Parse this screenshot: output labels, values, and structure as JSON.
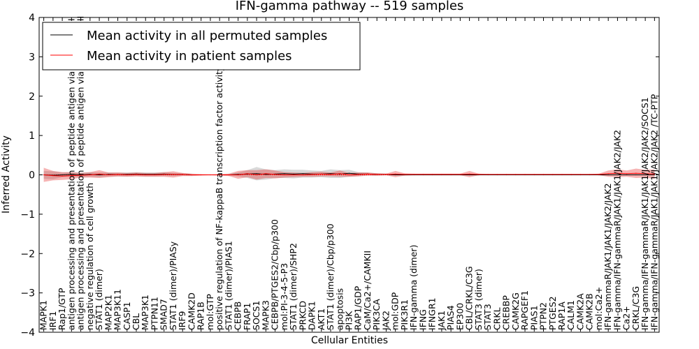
{
  "chart_data": {
    "type": "line",
    "title": "IFN-gamma pathway -- 519 samples",
    "xlabel": "Cellular Entities",
    "ylabel": "Inferred Activity",
    "ylim": [
      -4,
      4
    ],
    "yticks": [
      "4",
      "3",
      "2",
      "1",
      "0",
      "−1",
      "−2",
      "−3",
      "−4"
    ],
    "legend": {
      "placement": "top-left",
      "entries": [
        {
          "label": "Mean activity in all permuted samples",
          "color": "#000000"
        },
        {
          "label": "Mean activity in patient samples",
          "color": "#ff0000"
        }
      ]
    },
    "categories": [
      "MAPK1",
      "IRF1",
      "Rap1/GTP",
      "antigen processing and presentation of peptide antigen via MHC class I",
      "antigen processing and presentation of peptide antigen via MHC class II",
      "negative regulation of cell growth",
      "STAT1 (dimer)",
      "MAP2K1",
      "MAP3K11",
      "CASP1",
      "CBL",
      "MAP3K1",
      "PTPN11",
      "SMAD7",
      "STAT1 (dimer)/PIASy",
      "IRF9",
      "CAMK2D",
      "RAP1B",
      "mol:GTP",
      "positive regulation of NF-kappaB transcription factor activity",
      "STAT1 (dimer)/PIAS1",
      "CEBPB",
      "FRAP1",
      "SOCS1",
      "MAPK3",
      "CEBPB/PTGES2/Cbp/p300",
      "mol:PI-3-4-5-P3",
      "STAT1 (dimer)/SHP2",
      "PRKCD",
      "DAPK1",
      "AKT1",
      "STAT1 (dimer)/Cbp/p300",
      "apoptosis",
      "PI3K",
      "RAP1/GDP",
      "CaM/Ca2+/CAMKII",
      "PIK3CA",
      "JAK2",
      "mol:GDP",
      "PIK3R1",
      "IFN-gamma (dimer)",
      "IFNG",
      "IFNGR1",
      "JAK1",
      "PIAS4",
      "EP300",
      "CBL/CRKL/C3G",
      "STAT3 (dimer)",
      "STAT3",
      "CRKL",
      "CREBBP",
      "CAMK2G",
      "RAPGEF1",
      "PIAS1",
      "PTPN2",
      "PTGES2",
      "RAP1A",
      "CALM1",
      "CAMK2A",
      "CAMK2B",
      "mol:Ca2+",
      "IFN-gammaR/JAK1/JAK1/JAK2/JAK2",
      "IFN-gamma/IFN-gammaR/JAK1/JAK1/JAK2/JAK2",
      "Ca2+",
      "CRKL/C3G",
      "IFN-gamma/IFN-gammaR/JAK1/JAK1/JAK2/JAK2/SOCS1",
      "IFN-gamma/IFN-gammaR/JAK1/JAK1/JAK2/JAK2 /TC-PTP"
    ],
    "series": [
      {
        "name": "Mean activity in all permuted samples",
        "color": "#000000",
        "values": [
          0.0,
          -0.01,
          0.0,
          0.01,
          0.0,
          0.01,
          0.0,
          0.01,
          0.01,
          0.01,
          0.02,
          0.01,
          0.01,
          0.02,
          0.01,
          0.01,
          0.0,
          0.0,
          0.0,
          0.0,
          0.0,
          0.01,
          0.02,
          0.03,
          0.01,
          0.02,
          0.03,
          0.02,
          0.03,
          0.02,
          0.02,
          0.03,
          0.02,
          0.04,
          0.02,
          0.02,
          0.01,
          0.01,
          0.0,
          0.0,
          0.0,
          0.0,
          0.0,
          0.0,
          0.0,
          0.0,
          0.0,
          0.0,
          0.0,
          0.0,
          0.0,
          0.0,
          0.0,
          0.0,
          0.0,
          0.0,
          0.0,
          0.0,
          0.0,
          0.0,
          0.0,
          0.0,
          0.0,
          0.0,
          0.0,
          0.0,
          0.0
        ],
        "band": [
          0.1,
          0.1,
          0.06,
          0.06,
          0.06,
          0.06,
          0.06,
          0.05,
          0.05,
          0.05,
          0.05,
          0.05,
          0.05,
          0.05,
          0.04,
          0.03,
          0.02,
          0.01,
          0.01,
          0.01,
          0.02,
          0.05,
          0.1,
          0.17,
          0.13,
          0.1,
          0.11,
          0.11,
          0.1,
          0.09,
          0.08,
          0.11,
          0.1,
          0.09,
          0.05,
          0.04,
          0.03,
          0.02,
          0.01,
          0.01,
          0.01,
          0.01,
          0.01,
          0.01,
          0.01,
          0.01,
          0.01,
          0.01,
          0.01,
          0.01,
          0.01,
          0.01,
          0.01,
          0.01,
          0.01,
          0.01,
          0.01,
          0.01,
          0.01,
          0.01,
          0.01,
          0.01,
          0.01,
          0.01,
          0.01,
          0.01,
          0.01
        ]
      },
      {
        "name": "Mean activity in patient samples",
        "color": "#ff0000",
        "values": [
          0.0,
          -0.02,
          -0.03,
          -0.02,
          -0.01,
          0.0,
          0.02,
          0.0,
          0.01,
          0.0,
          0.01,
          0.0,
          0.0,
          0.01,
          0.01,
          0.01,
          0.0,
          0.0,
          0.0,
          0.0,
          0.0,
          0.0,
          0.03,
          0.0,
          0.03,
          0.01,
          0.0,
          0.0,
          0.0,
          0.01,
          0.02,
          0.01,
          0.03,
          0.0,
          0.01,
          0.02,
          0.01,
          0.01,
          0.02,
          0.01,
          0.01,
          0.01,
          0.01,
          0.01,
          0.01,
          0.01,
          0.02,
          0.01,
          0.01,
          0.01,
          0.01,
          0.01,
          0.01,
          0.01,
          0.01,
          0.01,
          0.01,
          0.01,
          0.01,
          0.01,
          0.01,
          0.03,
          0.04,
          0.03,
          0.04,
          0.03,
          0.02
        ],
        "band": [
          0.18,
          0.12,
          0.1,
          0.09,
          0.06,
          0.07,
          0.1,
          0.06,
          0.05,
          0.05,
          0.05,
          0.05,
          0.05,
          0.06,
          0.08,
          0.04,
          0.03,
          0.02,
          0.01,
          0.02,
          0.03,
          0.1,
          0.09,
          0.12,
          0.11,
          0.1,
          0.07,
          0.06,
          0.05,
          0.06,
          0.06,
          0.05,
          0.08,
          0.05,
          0.05,
          0.04,
          0.03,
          0.02,
          0.08,
          0.03,
          0.02,
          0.02,
          0.02,
          0.02,
          0.02,
          0.02,
          0.08,
          0.02,
          0.01,
          0.01,
          0.01,
          0.01,
          0.01,
          0.01,
          0.01,
          0.01,
          0.01,
          0.01,
          0.01,
          0.01,
          0.02,
          0.08,
          0.1,
          0.08,
          0.12,
          0.1,
          0.12
        ]
      }
    ],
    "reference_line": {
      "y": 0,
      "style": "dotted",
      "color": "#ff0000"
    }
  }
}
